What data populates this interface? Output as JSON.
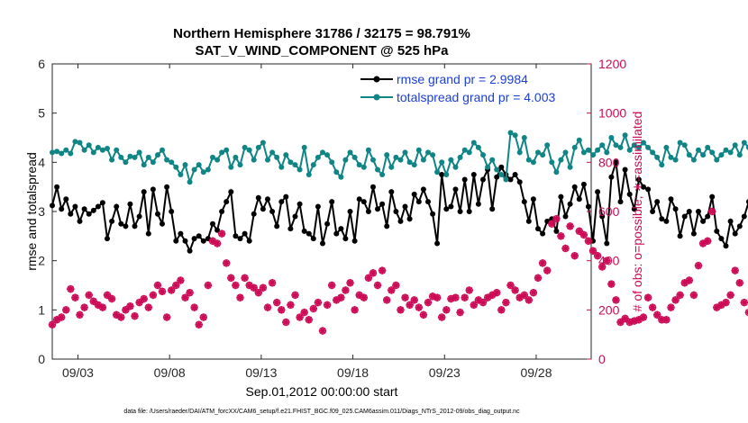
{
  "chart_data": {
    "type": "line",
    "title": "Northern Hemisphere 31786 / 32175 = 98.791%",
    "subtitle": "SAT_V_WIND_COMPONENT @ 525 hPa",
    "xlabel": "Sep.01,2012 00:00:00 start",
    "ylabel": "rmse and totalspread",
    "ylabel_right": "# of obs: o=possible; ∗=assimilated",
    "footer": "data file: /Users/raeder/DAI/ATM_forcXX/CAM6_setup/f.e21.FHIST_BGC.f09_025.CAM6assim.011/Diags_NTrS_2012-09/obs_diag_output.nc",
    "x_range_days": [
      1.6,
      31.0
    ],
    "ylim": [
      0,
      6
    ],
    "ylim_right": [
      0,
      1200
    ],
    "x_ticks": [
      {
        "day": 3,
        "label": "09/03"
      },
      {
        "day": 8,
        "label": "09/08"
      },
      {
        "day": 13,
        "label": "09/13"
      },
      {
        "day": 18,
        "label": "09/18"
      },
      {
        "day": 23,
        "label": "09/23"
      },
      {
        "day": 28,
        "label": "09/28"
      }
    ],
    "y_ticks": [
      0,
      1,
      2,
      3,
      4,
      5,
      6
    ],
    "y_ticks_right": [
      0,
      200,
      400,
      600,
      800,
      1000,
      1200
    ],
    "legend_position": "top-right",
    "grid": false,
    "series": [
      {
        "name": "rmse grand pr = 2.9984",
        "color": "#000000",
        "axis": "left",
        "marker": "circle",
        "x_start_day": 1.6,
        "x_step_days": 0.25,
        "values": [
          3.12,
          3.5,
          3.05,
          3.25,
          2.95,
          3.1,
          2.8,
          3.05,
          2.95,
          3.02,
          3.1,
          3.18,
          2.45,
          2.8,
          3.1,
          2.75,
          2.7,
          3.15,
          2.7,
          2.9,
          3.4,
          2.55,
          3.45,
          2.95,
          2.75,
          3.5,
          3.0,
          2.4,
          2.55,
          2.4,
          2.2,
          2.45,
          2.5,
          2.4,
          2.45,
          2.75,
          2.62,
          3.0,
          3.2,
          3.4,
          2.5,
          2.45,
          2.55,
          2.4,
          2.95,
          3.28,
          3.05,
          3.25,
          3.0,
          2.7,
          3.2,
          3.3,
          2.65,
          2.9,
          3.15,
          2.6,
          2.55,
          2.45,
          3.1,
          2.35,
          2.75,
          3.2,
          2.55,
          2.65,
          2.45,
          3.0,
          2.4,
          3.25,
          3.2,
          3.0,
          3.5,
          3.05,
          3.15,
          2.7,
          3.4,
          3.0,
          2.8,
          3.1,
          2.85,
          3.35,
          3.2,
          3.45,
          3.2,
          2.95,
          2.35,
          3.75,
          3.05,
          3.1,
          3.45,
          3.0,
          3.65,
          3.0,
          3.75,
          3.15,
          3.65,
          3.85,
          3.05,
          3.7,
          3.9,
          3.75,
          3.65,
          3.75,
          3.6,
          3.2,
          2.8,
          3.25,
          2.65,
          2.55,
          2.8,
          2.85,
          2.6,
          3.3,
          2.9,
          3.15,
          3.5,
          3.25,
          3.55,
          3.1,
          2.4,
          3.4,
          2.9,
          2.35,
          3.7,
          4.0,
          3.2,
          3.85,
          3.35,
          3.05,
          3.65,
          3.5,
          3.45,
          3.0,
          3.2,
          2.85,
          2.8,
          3.25,
          3.05,
          2.5,
          2.9,
          3.0,
          2.55,
          3.0,
          2.8,
          2.9,
          3.3,
          2.6,
          2.45,
          2.3,
          2.8,
          2.55,
          2.7,
          2.9,
          3.2,
          2.7,
          3.15,
          2.85,
          2.8,
          3.1,
          3.35,
          2.7,
          3.0,
          2.9,
          3.25,
          3.0,
          3.1,
          2.95,
          3.05,
          2.65,
          3.35
        ]
      },
      {
        "name": "totalspread grand pr = 4.003",
        "color": "#0f8585",
        "axis": "left",
        "marker": "circle",
        "x_start_day": 1.6,
        "x_step_days": 0.25,
        "values": [
          4.2,
          4.22,
          4.18,
          4.25,
          4.18,
          4.42,
          4.4,
          4.25,
          4.35,
          4.2,
          4.3,
          4.25,
          4.28,
          4.05,
          4.25,
          4.1,
          4.0,
          4.12,
          4.1,
          4.2,
          3.95,
          4.1,
          4.0,
          4.15,
          4.25,
          4.05,
          4.0,
          3.9,
          3.75,
          3.95,
          3.6,
          3.85,
          3.95,
          3.8,
          3.85,
          4.1,
          4.05,
          4.2,
          4.25,
          3.9,
          4.1,
          3.95,
          4.3,
          4.25,
          4.05,
          4.3,
          4.4,
          4.05,
          4.2,
          4.1,
          3.9,
          4.15,
          4.0,
          3.95,
          3.85,
          4.3,
          3.75,
          3.95,
          4.1,
          4.2,
          4.15,
          4.0,
          3.8,
          3.7,
          4.05,
          4.2,
          4.1,
          3.95,
          3.9,
          4.25,
          4.05,
          3.85,
          3.75,
          4.15,
          3.9,
          4.1,
          4.05,
          4.2,
          4.0,
          3.95,
          4.25,
          4.05,
          4.2,
          4.15,
          3.8,
          4.0,
          3.75,
          4.05,
          3.9,
          4.1,
          4.25,
          4.2,
          4.4,
          4.3,
          4.15,
          3.9,
          4.05,
          3.85,
          3.75,
          3.65,
          4.6,
          4.55,
          4.2,
          4.5,
          4.05,
          4.0,
          4.2,
          4.15,
          4.35,
          4.0,
          3.8,
          4.05,
          4.2,
          3.9,
          4.3,
          4.45,
          4.2,
          4.25,
          4.15,
          4.25,
          4.35,
          4.2,
          4.5,
          4.35,
          4.3,
          4.55,
          4.25,
          4.35,
          4.3,
          4.4,
          4.3,
          4.2,
          4.1,
          3.95,
          4.3,
          4.1,
          4.05,
          4.4,
          4.35,
          4.15,
          4.05,
          4.25,
          4.15,
          4.3,
          4.2,
          4.05,
          4.15,
          4.25,
          4.2,
          4.35,
          4.15,
          4.4,
          4.3,
          4.15,
          4.3,
          4.2,
          4.15,
          4.1,
          4.25,
          4.0,
          4.15,
          4.3,
          4.2,
          4.25,
          4.15
        ]
      },
      {
        "name": "# of obs assimilated",
        "color": "#cc0a55",
        "axis": "right",
        "marker": "star",
        "x_start_day": 1.6,
        "x_step_days": 0.25,
        "values": [
          140,
          160,
          170,
          200,
          285,
          250,
          180,
          210,
          260,
          235,
          220,
          210,
          260,
          245,
          180,
          170,
          200,
          215,
          175,
          230,
          245,
          210,
          260,
          300,
          275,
          170,
          280,
          300,
          320,
          250,
          270,
          210,
          140,
          170,
          300,
          480,
          470,
          510,
          390,
          330,
          300,
          250,
          330,
          300,
          290,
          270,
          290,
          210,
          310,
          230,
          200,
          150,
          220,
          260,
          170,
          190,
          160,
          205,
          230,
          115,
          220,
          300,
          240,
          250,
          280,
          310,
          200,
          260,
          250,
          330,
          350,
          300,
          360,
          240,
          280,
          300,
          200,
          250,
          220,
          240,
          210,
          180,
          230,
          255,
          250,
          170,
          200,
          245,
          250,
          190,
          250,
          280,
          220,
          240,
          230,
          250,
          260,
          270,
          200,
          230,
          300,
          280,
          250,
          260,
          240,
          270,
          330,
          390,
          360,
          550,
          570,
          500,
          450,
          540,
          420,
          520,
          505,
          480,
          440,
          420,
          375,
          400,
          305,
          240,
          150,
          165,
          150,
          155,
          160,
          170,
          250,
          210,
          180,
          160,
          160,
          210,
          240,
          260,
          310,
          320,
          260,
          380,
          470,
          480,
          600,
          210,
          220,
          230,
          260,
          360,
          310,
          230,
          190,
          250,
          220,
          200,
          175,
          240,
          230,
          210,
          170,
          200,
          195,
          190,
          205,
          0
        ]
      },
      {
        "name": "# of obs possible",
        "color": "#cc0a55",
        "axis": "right",
        "marker": "open-circle",
        "x_start_day": 1.6,
        "x_step_days": 0.25,
        "values": [
          140,
          160,
          170,
          200,
          285,
          250,
          180,
          210,
          260,
          235,
          220,
          210,
          260,
          245,
          180,
          170,
          200,
          215,
          175,
          230,
          245,
          210,
          260,
          300,
          275,
          170,
          280,
          300,
          320,
          250,
          270,
          210,
          140,
          170,
          300,
          480,
          470,
          510,
          390,
          330,
          300,
          250,
          330,
          300,
          290,
          270,
          290,
          210,
          310,
          230,
          200,
          150,
          220,
          260,
          170,
          190,
          160,
          205,
          230,
          115,
          220,
          300,
          240,
          250,
          280,
          310,
          200,
          260,
          250,
          330,
          350,
          300,
          360,
          240,
          280,
          300,
          200,
          250,
          220,
          240,
          210,
          180,
          230,
          255,
          250,
          170,
          200,
          245,
          250,
          190,
          250,
          280,
          220,
          240,
          230,
          250,
          260,
          270,
          200,
          230,
          300,
          280,
          250,
          260,
          240,
          270,
          330,
          390,
          360,
          550,
          570,
          500,
          450,
          540,
          420,
          520,
          505,
          480,
          440,
          420,
          375,
          400,
          305,
          240,
          150,
          165,
          150,
          155,
          160,
          170,
          250,
          210,
          180,
          160,
          160,
          210,
          240,
          260,
          310,
          320,
          260,
          380,
          470,
          480,
          600,
          210,
          220,
          230,
          260,
          360,
          310,
          230,
          190,
          250,
          220,
          200,
          175,
          240,
          230,
          210,
          170,
          200,
          195,
          190,
          205,
          0
        ]
      }
    ]
  }
}
